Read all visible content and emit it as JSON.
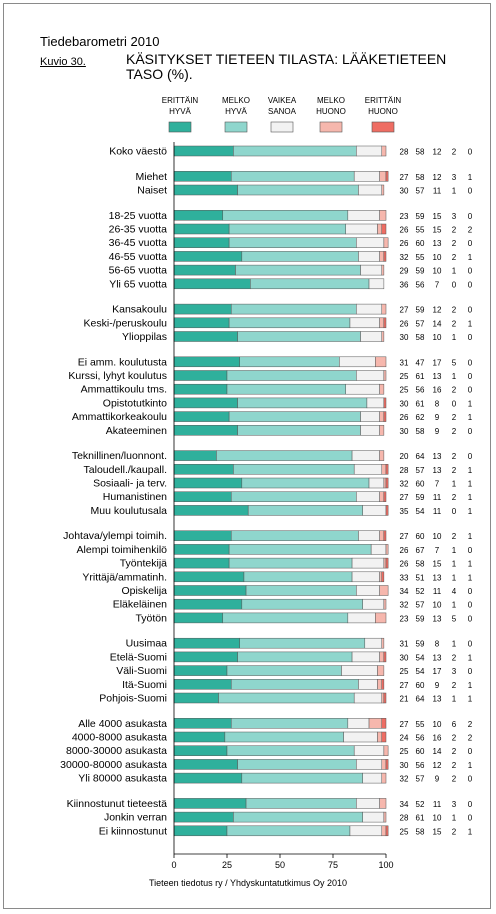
{
  "header": {
    "supertitle": "Tiedebarometri 2010",
    "figure_label": "Kuvio 30.",
    "title": "KÄSITYKSET TIETEEN TILASTA: LÄÄKETIETEEN TASO (%).",
    "credit": "Tieteen tiedotus ry / Yhdyskuntatutkimus Oy 2010"
  },
  "chart_data": {
    "type": "bar",
    "stacked": true,
    "orientation": "horizontal",
    "xlim": [
      0,
      100
    ],
    "x_ticks": [
      "0",
      "25",
      "50",
      "75",
      "100"
    ],
    "legend_position": "top",
    "series": [
      {
        "name": "ERITTÄIN HYVÄ",
        "color": "#2fb09c"
      },
      {
        "name": "MELKO HYVÄ",
        "color": "#8fd6cd"
      },
      {
        "name": "VAIKEA SANOA",
        "color": "#f2f2f2"
      },
      {
        "name": "MELKO HUONO",
        "color": "#f6b7ad"
      },
      {
        "name": "ERITTÄIN HUONO",
        "color": "#ee6d63"
      }
    ],
    "groups": [
      [
        {
          "label": "Koko väestö",
          "values": [
            28,
            58,
            12,
            2,
            0
          ]
        }
      ],
      [
        {
          "label": "Miehet",
          "values": [
            27,
            58,
            12,
            3,
            1
          ]
        },
        {
          "label": "Naiset",
          "values": [
            30,
            57,
            11,
            1,
            0
          ]
        }
      ],
      [
        {
          "label": "18-25 vuotta",
          "values": [
            23,
            59,
            15,
            3,
            0
          ]
        },
        {
          "label": "26-35 vuotta",
          "values": [
            26,
            55,
            15,
            2,
            2
          ]
        },
        {
          "label": "36-45 vuotta",
          "values": [
            26,
            60,
            13,
            2,
            0
          ]
        },
        {
          "label": "46-55 vuotta",
          "values": [
            32,
            55,
            10,
            2,
            1
          ]
        },
        {
          "label": "56-65 vuotta",
          "values": [
            29,
            59,
            10,
            1,
            0
          ]
        },
        {
          "label": "Yli 65 vuotta",
          "values": [
            36,
            56,
            7,
            0,
            0
          ]
        }
      ],
      [
        {
          "label": "Kansakoulu",
          "values": [
            27,
            59,
            12,
            2,
            0
          ]
        },
        {
          "label": "Keski-/peruskoulu",
          "values": [
            26,
            57,
            14,
            2,
            1
          ]
        },
        {
          "label": "Ylioppilas",
          "values": [
            30,
            58,
            10,
            1,
            0
          ]
        }
      ],
      [
        {
          "label": "Ei amm. koulutusta",
          "values": [
            31,
            47,
            17,
            5,
            0
          ]
        },
        {
          "label": "Kurssi, lyhyt koulutus",
          "values": [
            25,
            61,
            13,
            1,
            0
          ]
        },
        {
          "label": "Ammattikoulu tms.",
          "values": [
            25,
            56,
            16,
            2,
            0
          ]
        },
        {
          "label": "Opistotutkinto",
          "values": [
            30,
            61,
            8,
            0,
            1
          ]
        },
        {
          "label": "Ammattikorkeakoulu",
          "values": [
            26,
            62,
            9,
            2,
            1
          ]
        },
        {
          "label": "Akateeminen",
          "values": [
            30,
            58,
            9,
            2,
            0
          ]
        }
      ],
      [
        {
          "label": "Teknillinen/luonnont.",
          "values": [
            20,
            64,
            13,
            2,
            0
          ]
        },
        {
          "label": "Taloudell./kaupall.",
          "values": [
            28,
            57,
            13,
            2,
            1
          ]
        },
        {
          "label": "Sosiaali- ja terv.",
          "values": [
            32,
            60,
            7,
            1,
            1
          ]
        },
        {
          "label": "Humanistinen",
          "values": [
            27,
            59,
            11,
            2,
            1
          ]
        },
        {
          "label": "Muu koulutusala",
          "values": [
            35,
            54,
            11,
            0,
            1
          ]
        }
      ],
      [
        {
          "label": "Johtava/ylempi toimih.",
          "values": [
            27,
            60,
            10,
            2,
            1
          ]
        },
        {
          "label": "Alempi toimihenkilö",
          "values": [
            26,
            67,
            7,
            1,
            0
          ]
        },
        {
          "label": "Työntekijä",
          "values": [
            26,
            58,
            15,
            1,
            1
          ]
        },
        {
          "label": "Yrittäjä/ammatinh.",
          "values": [
            33,
            51,
            13,
            1,
            1
          ]
        },
        {
          "label": "Opiskelija",
          "values": [
            34,
            52,
            11,
            4,
            0
          ]
        },
        {
          "label": "Eläkeläinen",
          "values": [
            32,
            57,
            10,
            1,
            0
          ]
        },
        {
          "label": "Työtön",
          "values": [
            23,
            59,
            13,
            5,
            0
          ]
        }
      ],
      [
        {
          "label": "Uusimaa",
          "values": [
            31,
            59,
            8,
            1,
            0
          ]
        },
        {
          "label": "Etelä-Suomi",
          "values": [
            30,
            54,
            13,
            2,
            1
          ]
        },
        {
          "label": "Väli-Suomi",
          "values": [
            25,
            54,
            17,
            3,
            0
          ]
        },
        {
          "label": "Itä-Suomi",
          "values": [
            27,
            60,
            9,
            2,
            1
          ]
        },
        {
          "label": "Pohjois-Suomi",
          "values": [
            21,
            64,
            13,
            1,
            1
          ]
        }
      ],
      [
        {
          "label": "Alle 4000 asukasta",
          "values": [
            27,
            55,
            10,
            6,
            2
          ]
        },
        {
          "label": "4000-8000 asukasta",
          "values": [
            24,
            56,
            16,
            2,
            2
          ]
        },
        {
          "label": "8000-30000 asukasta",
          "values": [
            25,
            60,
            14,
            2,
            0
          ]
        },
        {
          "label": "30000-80000 asukasta",
          "values": [
            30,
            56,
            12,
            2,
            1
          ]
        },
        {
          "label": "Yli 80000 asukasta",
          "values": [
            32,
            57,
            9,
            2,
            0
          ]
        }
      ],
      [
        {
          "label": "Kiinnostunut tieteestä",
          "values": [
            34,
            52,
            11,
            3,
            0
          ]
        },
        {
          "label": "Jonkin verran",
          "values": [
            28,
            61,
            10,
            1,
            0
          ]
        },
        {
          "label": "Ei kiinnostunut",
          "values": [
            25,
            58,
            15,
            2,
            1
          ]
        }
      ]
    ]
  }
}
